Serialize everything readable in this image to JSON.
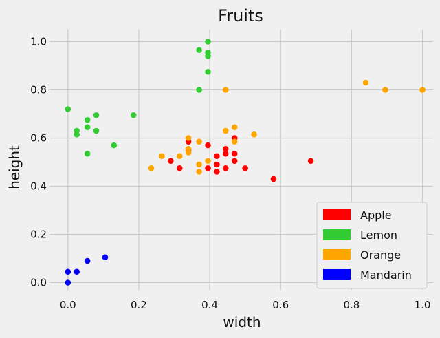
{
  "chart_data": {
    "type": "scatter",
    "title": "Fruits",
    "xlabel": "width",
    "ylabel": "height",
    "xlim": [
      -0.05,
      1.03
    ],
    "ylim": [
      -0.03,
      1.05
    ],
    "xticks": [
      0.0,
      0.2,
      0.4,
      0.6,
      0.8,
      1.0
    ],
    "yticks": [
      0.0,
      0.2,
      0.4,
      0.6,
      0.8,
      1.0
    ],
    "tick_labels": [
      "0.0",
      "0.2",
      "0.4",
      "0.6",
      "0.8",
      "1.0"
    ],
    "grid": true,
    "legend_position": "bottom-right",
    "series": [
      {
        "name": "Apple",
        "color": "#ff0000",
        "points": [
          [
            0.34,
            0.585
          ],
          [
            0.29,
            0.505
          ],
          [
            0.315,
            0.475
          ],
          [
            0.34,
            0.55
          ],
          [
            0.395,
            0.57
          ],
          [
            0.395,
            0.475
          ],
          [
            0.42,
            0.525
          ],
          [
            0.42,
            0.49
          ],
          [
            0.42,
            0.46
          ],
          [
            0.445,
            0.555
          ],
          [
            0.445,
            0.535
          ],
          [
            0.445,
            0.475
          ],
          [
            0.47,
            0.6
          ],
          [
            0.47,
            0.535
          ],
          [
            0.47,
            0.505
          ],
          [
            0.5,
            0.475
          ],
          [
            0.58,
            0.43
          ],
          [
            0.685,
            0.505
          ]
        ]
      },
      {
        "name": "Lemon",
        "color": "#32cd32",
        "points": [
          [
            0.0,
            0.72
          ],
          [
            0.025,
            0.63
          ],
          [
            0.025,
            0.615
          ],
          [
            0.055,
            0.675
          ],
          [
            0.055,
            0.645
          ],
          [
            0.055,
            0.535
          ],
          [
            0.08,
            0.695
          ],
          [
            0.08,
            0.63
          ],
          [
            0.13,
            0.57
          ],
          [
            0.185,
            0.695
          ],
          [
            0.37,
            0.965
          ],
          [
            0.37,
            0.8
          ],
          [
            0.395,
            1.0
          ],
          [
            0.395,
            0.955
          ],
          [
            0.395,
            0.94
          ],
          [
            0.395,
            0.875
          ]
        ]
      },
      {
        "name": "Orange",
        "color": "#ffa500",
        "points": [
          [
            0.235,
            0.475
          ],
          [
            0.265,
            0.525
          ],
          [
            0.315,
            0.525
          ],
          [
            0.34,
            0.6
          ],
          [
            0.34,
            0.555
          ],
          [
            0.34,
            0.54
          ],
          [
            0.37,
            0.585
          ],
          [
            0.37,
            0.49
          ],
          [
            0.37,
            0.46
          ],
          [
            0.395,
            0.505
          ],
          [
            0.445,
            0.8
          ],
          [
            0.445,
            0.63
          ],
          [
            0.47,
            0.645
          ],
          [
            0.47,
            0.585
          ],
          [
            0.525,
            0.615
          ],
          [
            0.84,
            0.83
          ],
          [
            0.895,
            0.8
          ],
          [
            1.0,
            0.8
          ]
        ]
      },
      {
        "name": "Mandarin",
        "color": "#0000ff",
        "points": [
          [
            0.0,
            0.045
          ],
          [
            0.0,
            0.0
          ],
          [
            0.025,
            0.045
          ],
          [
            0.055,
            0.09
          ],
          [
            0.105,
            0.105
          ]
        ]
      }
    ]
  }
}
